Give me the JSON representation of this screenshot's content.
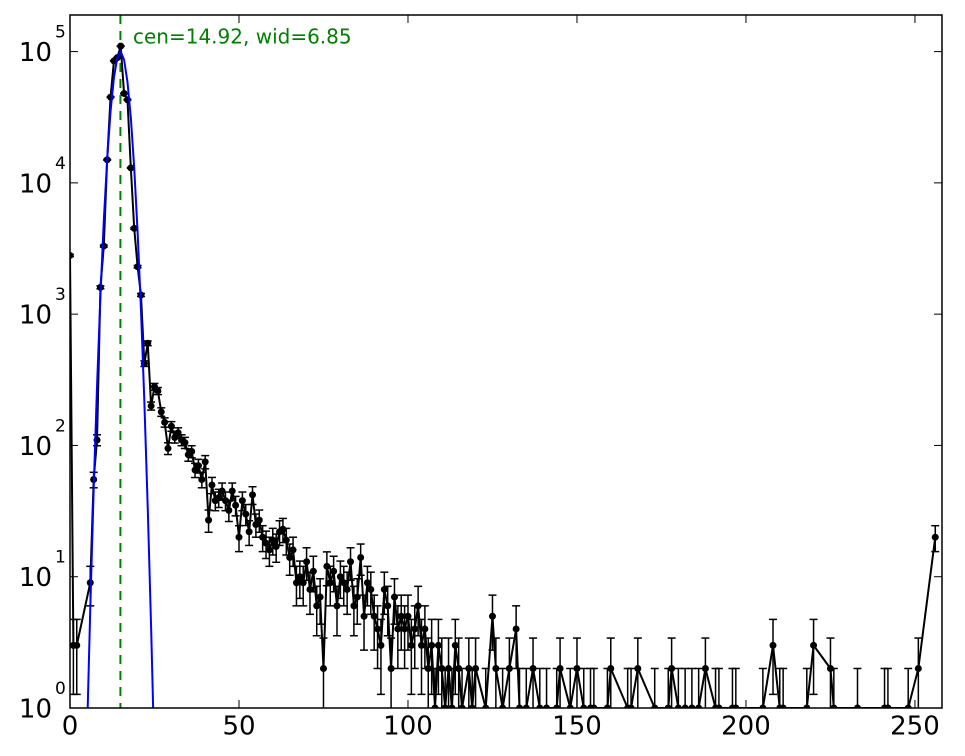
{
  "chart_data": {
    "type": "errorbar",
    "annotation": "cen=14.92, wid=6.85",
    "xlim": [
      0,
      258
    ],
    "xticks": [
      0,
      50,
      100,
      150,
      200,
      250
    ],
    "ylim": [
      1,
      190000
    ],
    "log_y": true,
    "yticks": [
      {
        "value": 1,
        "label": "10",
        "exponent": "0"
      },
      {
        "value": 10,
        "label": "10",
        "exponent": "1"
      },
      {
        "value": 100,
        "label": "10",
        "exponent": "2"
      },
      {
        "value": 1000,
        "label": "10",
        "exponent": "3"
      },
      {
        "value": 10000,
        "label": "10",
        "exponent": "4"
      },
      {
        "value": 100000,
        "label": "10",
        "exponent": "5"
      }
    ],
    "vline": {
      "x": 14.92,
      "color": "#008000"
    },
    "series": [
      {
        "type": "errorbar",
        "color": "#000000",
        "x": [
          0,
          1,
          2,
          6,
          7,
          8,
          9,
          10,
          11,
          12,
          13,
          14,
          15,
          16,
          17,
          18,
          19,
          20,
          21,
          22,
          23,
          24,
          25,
          26,
          27,
          28,
          29,
          30,
          31,
          32,
          33,
          34,
          35,
          36,
          37,
          38,
          39,
          40,
          41,
          42,
          43,
          44,
          45,
          46,
          47,
          48,
          49,
          50,
          51,
          52,
          53,
          54,
          55,
          56,
          57,
          58,
          59,
          60,
          61,
          62,
          63,
          64,
          65,
          66,
          67,
          68,
          69,
          70,
          71,
          72,
          73,
          74,
          75,
          76,
          77,
          78,
          79,
          80,
          81,
          82,
          83,
          84,
          85,
          86,
          87,
          88,
          89,
          90,
          91,
          92,
          93,
          94,
          95,
          96,
          97,
          98,
          99,
          100,
          101,
          102,
          103,
          104,
          105,
          106,
          107,
          108,
          109,
          110,
          111,
          112,
          113,
          114,
          115,
          116,
          118,
          119,
          120,
          123,
          125,
          126,
          128,
          130,
          132,
          133,
          135,
          137,
          139,
          141,
          144,
          145,
          148,
          150,
          152,
          154,
          155,
          159,
          160,
          165,
          166,
          168,
          173,
          177,
          178,
          180,
          182,
          184,
          186,
          188,
          191,
          192,
          196,
          197,
          205,
          208,
          210,
          211,
          218,
          220,
          225,
          226,
          233,
          241,
          242,
          248,
          251,
          256
        ],
        "values": [
          2800,
          3,
          3,
          9,
          55,
          110,
          1600,
          3300,
          15000,
          45000,
          85000,
          90000,
          110000,
          48000,
          43000,
          13000,
          4500,
          2300,
          1400,
          420,
          600,
          200,
          280,
          260,
          180,
          150,
          95,
          140,
          115,
          125,
          110,
          105,
          85,
          90,
          65,
          70,
          55,
          75,
          27,
          50,
          38,
          40,
          45,
          38,
          32,
          45,
          35,
          20,
          38,
          30,
          22,
          42,
          25,
          27,
          20,
          18,
          16,
          19,
          17,
          22,
          23,
          19,
          14,
          16,
          9,
          10,
          9,
          13,
          8,
          11,
          6,
          7,
          2,
          12,
          9,
          11,
          6,
          10,
          9,
          8,
          13,
          6,
          7,
          14,
          5,
          9,
          8,
          5,
          4,
          3,
          8,
          6,
          2,
          7,
          4,
          5,
          4,
          5,
          3,
          4,
          6,
          3,
          4,
          2,
          3,
          1,
          3,
          2,
          1,
          2,
          1,
          3,
          2,
          1,
          2,
          1,
          2,
          1,
          5,
          2,
          1,
          2,
          4,
          1,
          1,
          2,
          1,
          1,
          1,
          2,
          1,
          2,
          1,
          1,
          1,
          1,
          2,
          1,
          1,
          2,
          1,
          1,
          2,
          1,
          1,
          1,
          1,
          2,
          1,
          1,
          1,
          1,
          1,
          3,
          1,
          1,
          1,
          3,
          2,
          1,
          1,
          1,
          1,
          1,
          2,
          20
        ],
        "errors": [
          52.9,
          1.73,
          1.73,
          3,
          7.42,
          10.5,
          40,
          57.4,
          122,
          212,
          292,
          300,
          332,
          219,
          207,
          114,
          67.1,
          48,
          37.4,
          20.5,
          24.5,
          14.1,
          16.7,
          16.1,
          13.4,
          12.2,
          9.75,
          11.8,
          10.7,
          11.2,
          10.5,
          10.2,
          9.22,
          9.49,
          8.06,
          8.37,
          7.42,
          8.66,
          5.2,
          7.07,
          6.16,
          6.32,
          6.71,
          6.16,
          5.66,
          6.71,
          5.92,
          4.47,
          6.16,
          5.48,
          4.69,
          6.48,
          5,
          5.2,
          4.47,
          4.24,
          4,
          4.36,
          4.12,
          4.69,
          4.8,
          4.36,
          3.74,
          4,
          3,
          3.16,
          3,
          3.61,
          2.83,
          3.32,
          2.45,
          2.65,
          1.41,
          3.46,
          3,
          3.32,
          2.45,
          3.16,
          3,
          2.83,
          3.61,
          2.45,
          2.65,
          3.74,
          2.24,
          3,
          2.83,
          2.24,
          2,
          1.73,
          2.83,
          2.45,
          1.41,
          2.65,
          2,
          2.24,
          2,
          2.24,
          1.73,
          2,
          2.45,
          1.73,
          2,
          1.41,
          1.73,
          1,
          1.73,
          1.41,
          1,
          1.41,
          1,
          1.73,
          1.41,
          1,
          1.41,
          1,
          1.41,
          1,
          2.24,
          1.41,
          1,
          1.41,
          2,
          1,
          1,
          1.41,
          1,
          1,
          1,
          1.41,
          1,
          1.41,
          1,
          1,
          1,
          1,
          1.41,
          1,
          1,
          1.41,
          1,
          1,
          1.41,
          1,
          1,
          1,
          1,
          1.41,
          1,
          1,
          1,
          1,
          1,
          1.73,
          1,
          1,
          1,
          1.73,
          1.41,
          1,
          1,
          1,
          1,
          1,
          1.41,
          4.47
        ]
      },
      {
        "type": "line",
        "color": "#0000ff",
        "x": [
          5,
          6,
          7,
          8,
          9,
          10,
          11,
          12,
          13,
          14,
          15,
          16,
          17,
          18,
          19,
          20,
          21,
          22,
          23,
          24,
          25
        ],
        "values": [
          0.58,
          5.8,
          46,
          283,
          1370,
          5150,
          15200,
          35200,
          63600,
          90100,
          99900,
          86700,
          58800,
          31300,
          13000,
          4230,
          1080,
          215,
          33.5,
          4.1,
          0.39
        ]
      }
    ]
  }
}
